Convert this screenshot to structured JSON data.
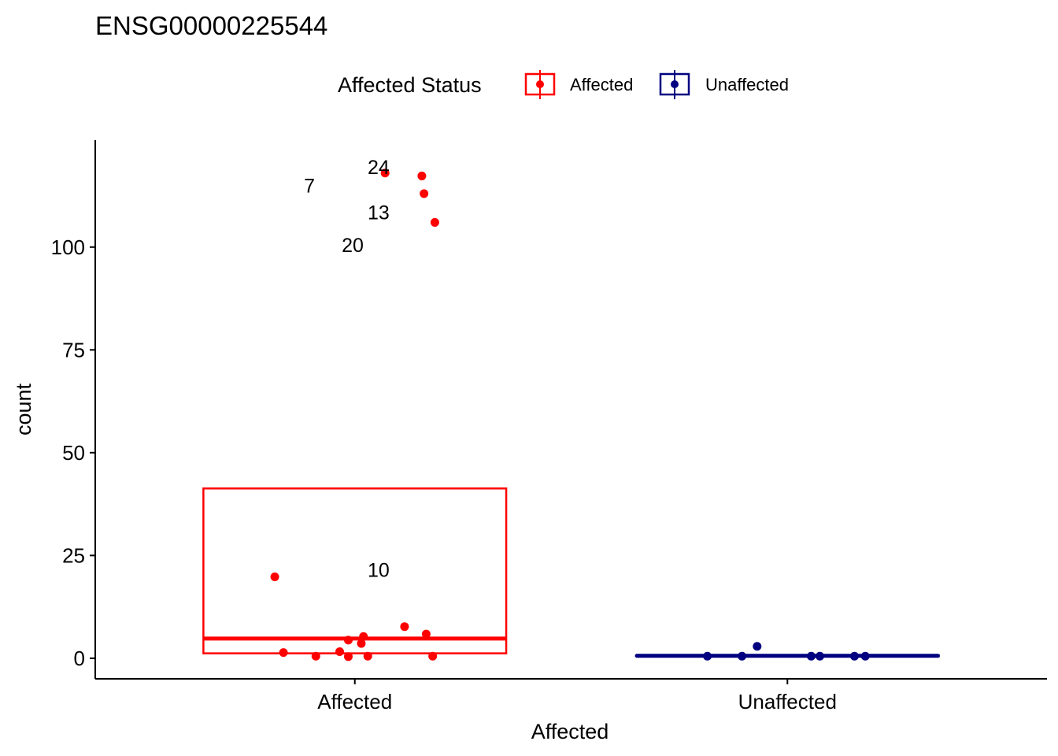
{
  "chart_data": {
    "type": "boxplot",
    "title": "ENSG00000225544",
    "xlabel": "Affected",
    "ylabel": "count",
    "categories": [
      "Affected",
      "Unaffected"
    ],
    "ylim": [
      -5,
      126
    ],
    "yticks": [
      0,
      25,
      50,
      75,
      100
    ],
    "grid": false,
    "legend": {
      "title": "Affected Status",
      "position": "top",
      "entries": [
        {
          "label": "Affected",
          "color": "#ff0000"
        },
        {
          "label": "Unaffected",
          "color": "#000080"
        }
      ]
    },
    "boxes": [
      {
        "category": "Affected",
        "q1": 1.2,
        "median": 4.8,
        "q3": 41.3,
        "color": "#ff0000"
      },
      {
        "category": "Unaffected",
        "q1": 0.5,
        "median": 0.6,
        "q3": 0.7,
        "color": "#000080"
      }
    ],
    "points": {
      "Affected": [
        {
          "x": 1.07,
          "y": 118.0
        },
        {
          "x": 1.155,
          "y": 117.3
        },
        {
          "x": 1.16,
          "y": 113.0
        },
        {
          "x": 1.185,
          "y": 106.0
        },
        {
          "x": 0.815,
          "y": 19.8
        },
        {
          "x": 1.115,
          "y": 7.7
        },
        {
          "x": 1.165,
          "y": 5.9
        },
        {
          "x": 1.02,
          "y": 5.3
        },
        {
          "x": 0.985,
          "y": 4.4
        },
        {
          "x": 1.015,
          "y": 3.6
        },
        {
          "x": 0.835,
          "y": 1.4
        },
        {
          "x": 0.965,
          "y": 1.6
        },
        {
          "x": 0.91,
          "y": 0.5
        },
        {
          "x": 0.985,
          "y": 0.4
        },
        {
          "x": 1.03,
          "y": 0.5
        },
        {
          "x": 1.18,
          "y": 0.5
        }
      ],
      "Unaffected": [
        {
          "x": 1.815,
          "y": 0.5
        },
        {
          "x": 1.895,
          "y": 0.5
        },
        {
          "x": 1.93,
          "y": 2.9
        },
        {
          "x": 2.055,
          "y": 0.5
        },
        {
          "x": 2.075,
          "y": 0.5
        },
        {
          "x": 2.155,
          "y": 0.5
        },
        {
          "x": 2.18,
          "y": 0.5
        }
      ]
    },
    "annotations": [
      {
        "text": "24",
        "x": 1.055,
        "y": 119.5
      },
      {
        "text": "7",
        "x": 0.895,
        "y": 115.0
      },
      {
        "text": "13",
        "x": 1.055,
        "y": 108.5
      },
      {
        "text": "20",
        "x": 0.995,
        "y": 100.5
      },
      {
        "text": "10",
        "x": 1.055,
        "y": 21.5
      }
    ]
  }
}
